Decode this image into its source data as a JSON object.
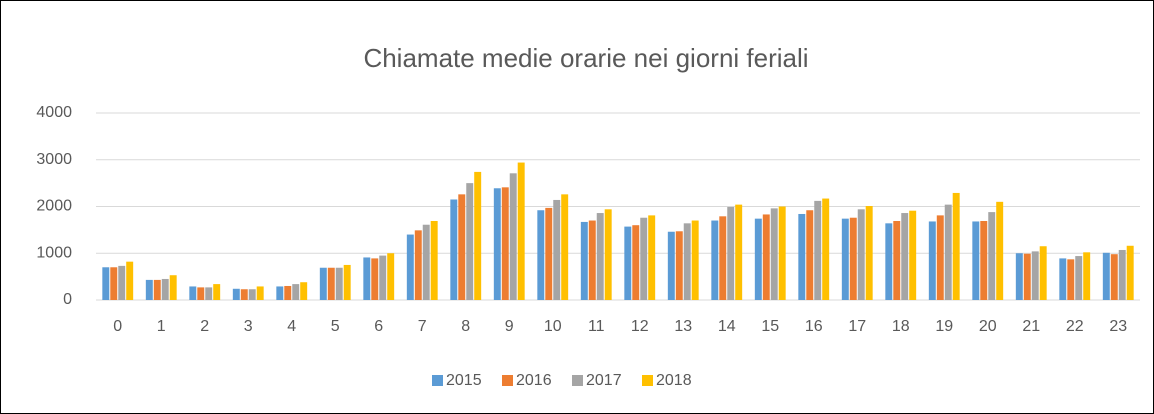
{
  "chart_data": {
    "type": "bar",
    "title": "Chiamate medie orarie nei giorni feriali",
    "categories": [
      "0",
      "1",
      "2",
      "3",
      "4",
      "5",
      "6",
      "7",
      "8",
      "9",
      "10",
      "11",
      "12",
      "13",
      "14",
      "15",
      "16",
      "17",
      "18",
      "19",
      "20",
      "21",
      "22",
      "23"
    ],
    "series": [
      {
        "name": "2015",
        "color": "#5b9bd5",
        "values": [
          700,
          430,
          290,
          240,
          290,
          690,
          910,
          1400,
          2150,
          2390,
          1920,
          1670,
          1570,
          1460,
          1700,
          1740,
          1840,
          1740,
          1640,
          1680,
          1680,
          1000,
          890,
          1010
        ]
      },
      {
        "name": "2016",
        "color": "#ed7d31",
        "values": [
          700,
          430,
          270,
          230,
          300,
          690,
          890,
          1490,
          2260,
          2410,
          1970,
          1700,
          1600,
          1470,
          1790,
          1830,
          1920,
          1760,
          1690,
          1810,
          1690,
          990,
          870,
          980
        ]
      },
      {
        "name": "2017",
        "color": "#a5a5a5",
        "values": [
          730,
          450,
          270,
          230,
          340,
          690,
          950,
          1610,
          2500,
          2710,
          2140,
          1860,
          1760,
          1640,
          1990,
          1960,
          2120,
          1940,
          1860,
          2040,
          1880,
          1040,
          940,
          1070
        ]
      },
      {
        "name": "2018",
        "color": "#ffc000",
        "values": [
          820,
          530,
          340,
          290,
          380,
          750,
          1000,
          1690,
          2740,
          2940,
          2260,
          1940,
          1810,
          1700,
          2040,
          2000,
          2170,
          2010,
          1910,
          2290,
          2100,
          1150,
          1020,
          1160
        ]
      }
    ],
    "ylim": [
      0,
      4000
    ],
    "yticks": [
      0,
      1000,
      2000,
      3000,
      4000
    ],
    "grid": true,
    "legend": "bottom"
  }
}
